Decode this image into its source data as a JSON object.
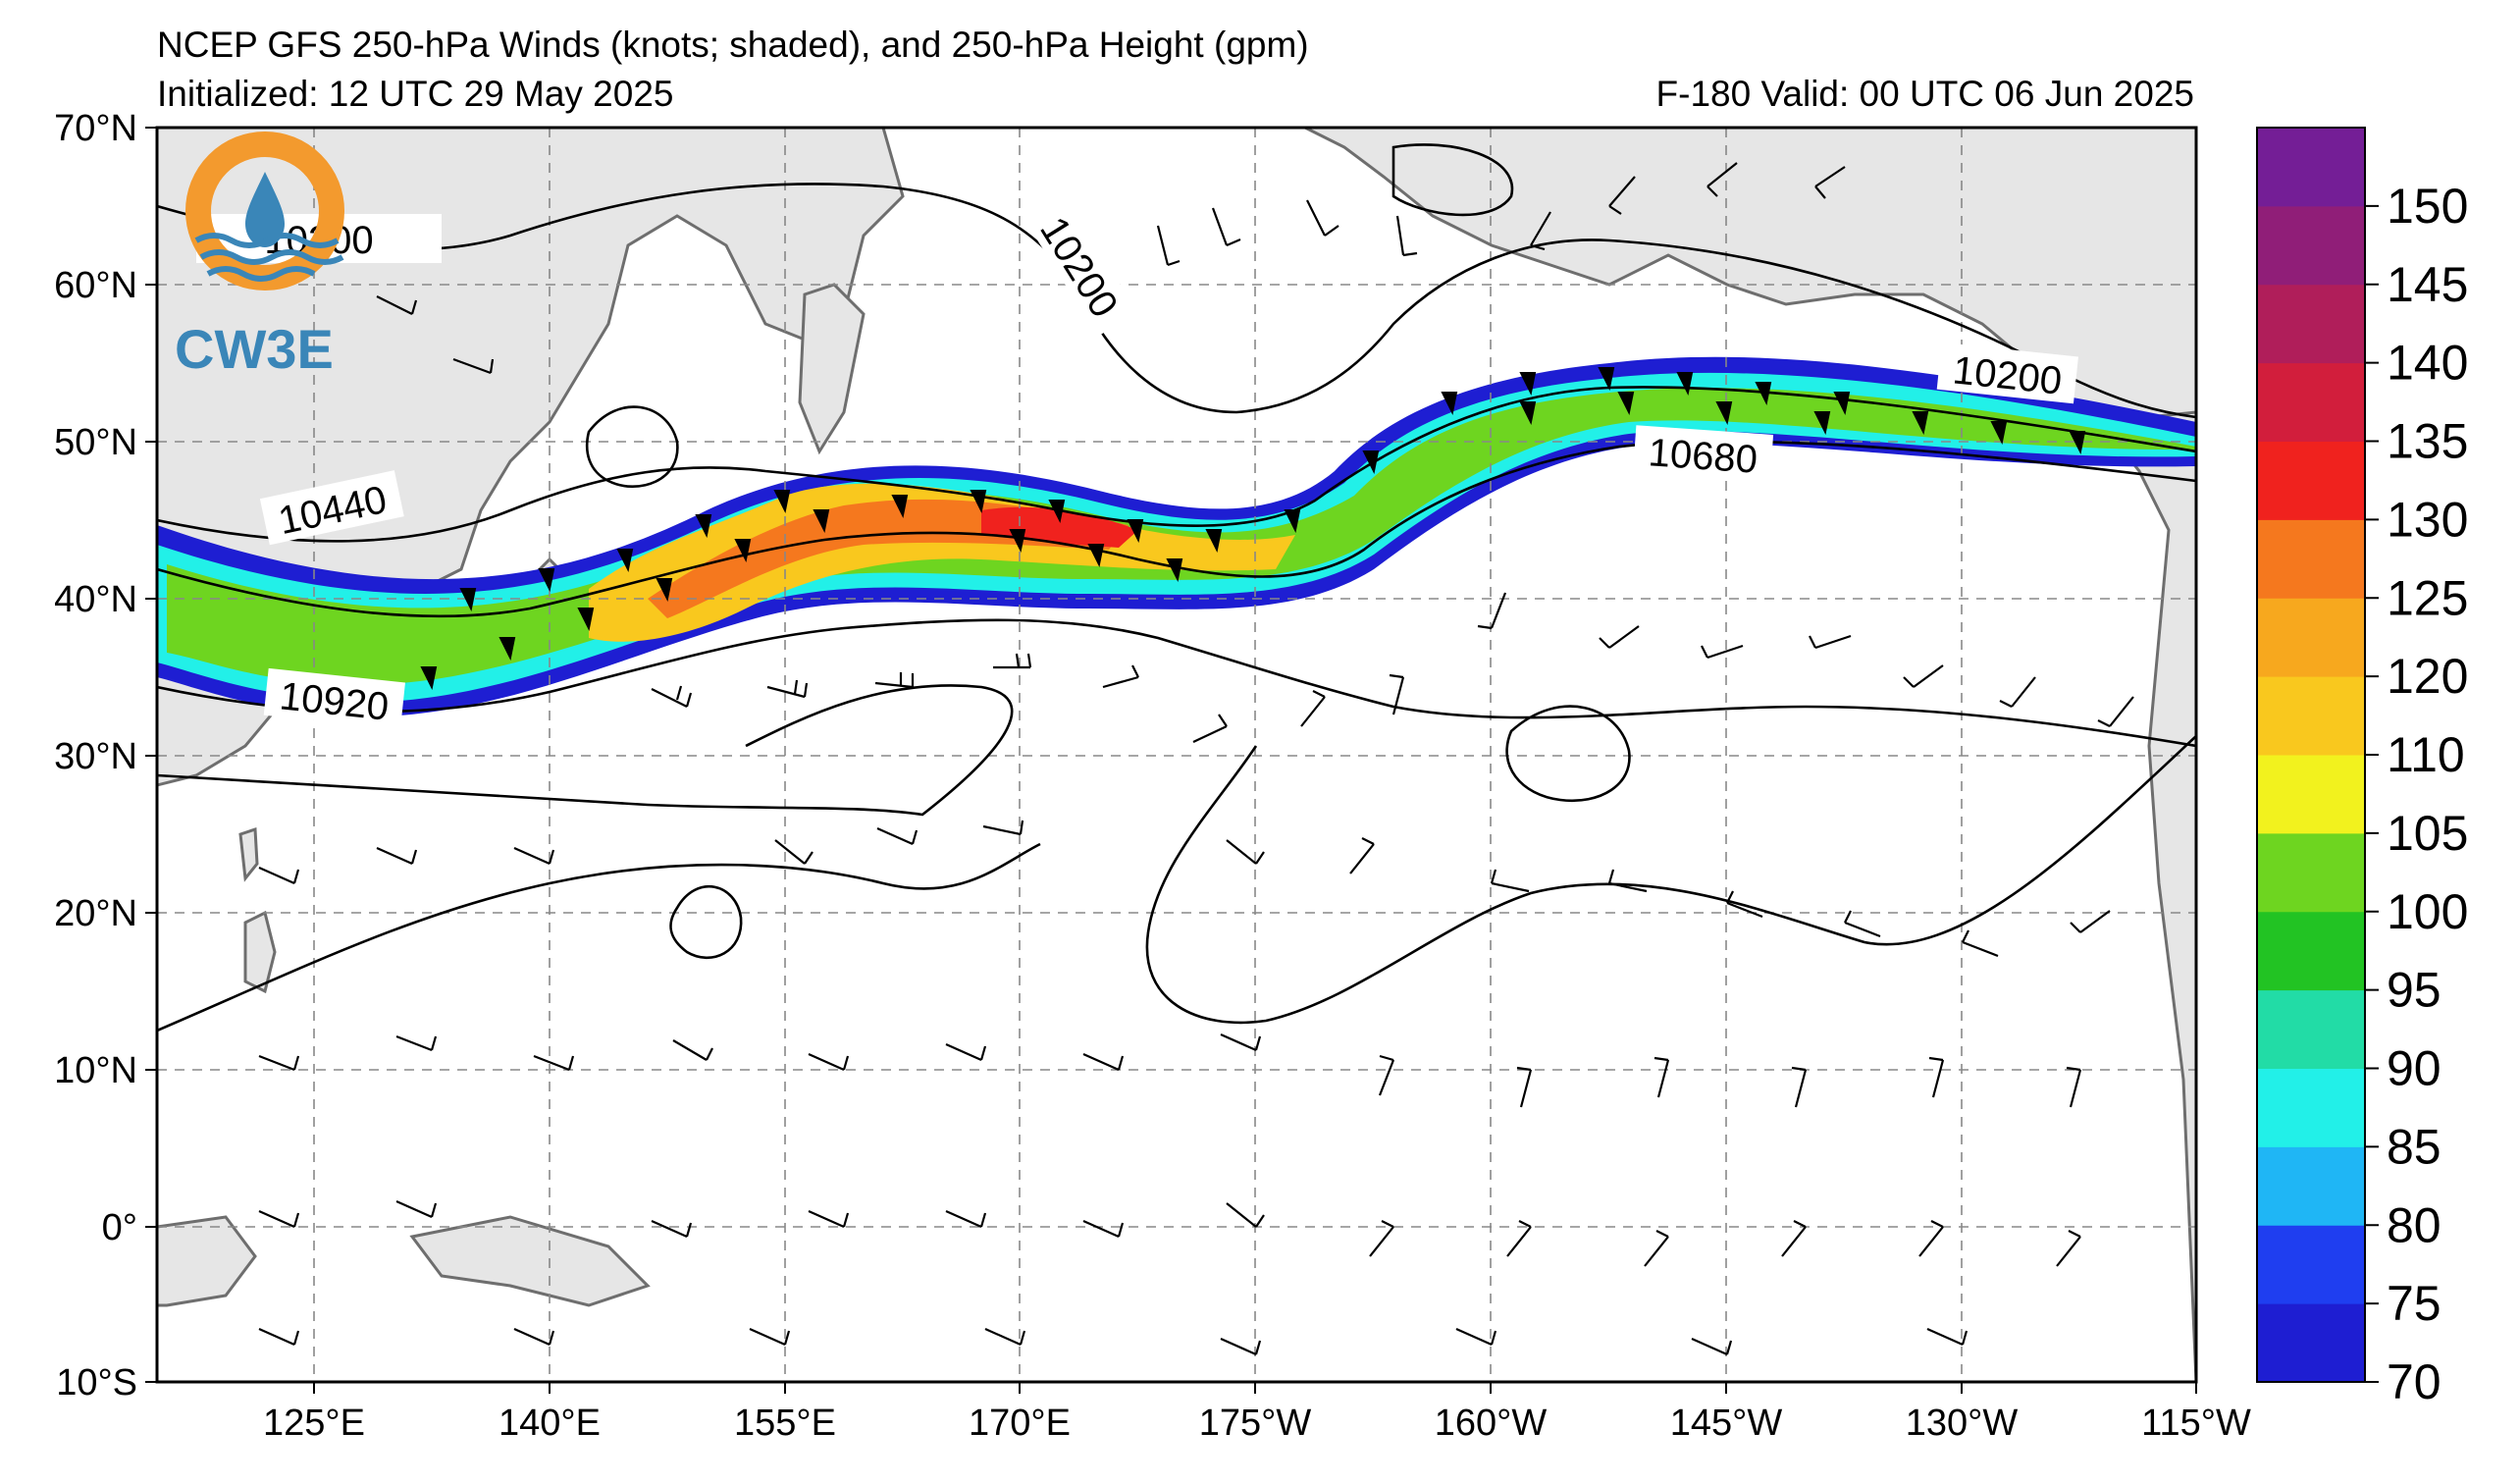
{
  "title": {
    "line1": "NCEP GFS 250-hPa Winds (knots; shaded), and 250-hPa Height (gpm)",
    "line2_left": "Initialized: 12 UTC 29 May 2025",
    "line2_right": "F-180  Valid: 00 UTC 06 Jun 2025"
  },
  "logo": {
    "text": "CW3E",
    "colors": {
      "ring": "#f39a2e",
      "water": "#3a86b8"
    }
  },
  "map": {
    "lat_labels": [
      "70°N",
      "60°N",
      "50°N",
      "40°N",
      "30°N",
      "20°N",
      "10°N",
      "0°",
      "10°S"
    ],
    "lon_labels": [
      "125°E",
      "140°E",
      "155°E",
      "170°E",
      "175°W",
      "160°W",
      "145°W",
      "130°W",
      "115°W"
    ],
    "land_color": "#e6e6e6",
    "grid_color": "#888888"
  },
  "contour_labels": [
    "10200",
    "10200",
    "10200",
    "10440",
    "10680",
    "10920"
  ],
  "colorbar": {
    "ticks": [
      "70",
      "75",
      "80",
      "85",
      "90",
      "95",
      "100",
      "105",
      "110",
      "120",
      "125",
      "130",
      "135",
      "140",
      "145",
      "150"
    ],
    "colors": [
      "#1e1ed2",
      "#1f3ef0",
      "#1fb6f5",
      "#22f0e8",
      "#22dca6",
      "#22c323",
      "#6ed520",
      "#f2f21e",
      "#f9c81e",
      "#f7a81e",
      "#f5781e",
      "#f0221e",
      "#d21e3c",
      "#b01e5a",
      "#901e78",
      "#741e96"
    ]
  }
}
